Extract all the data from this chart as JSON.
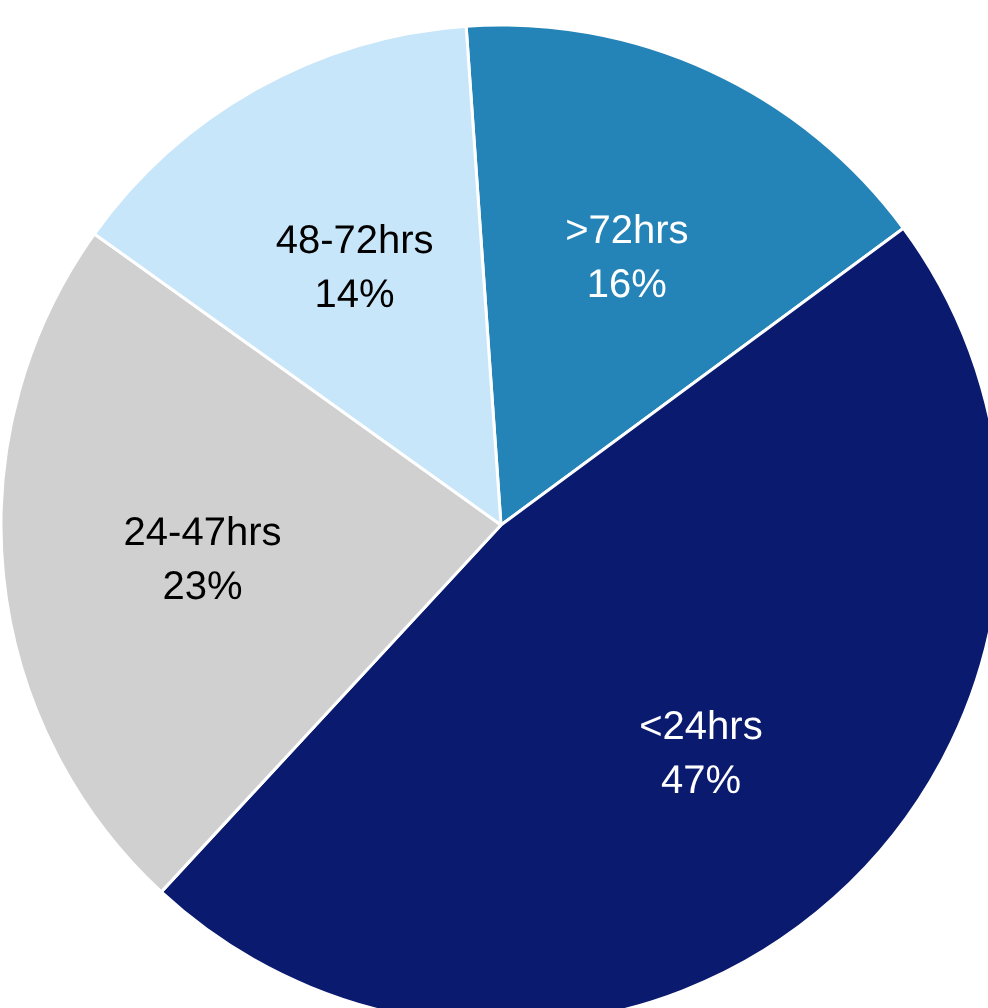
{
  "chart_data": {
    "type": "pie",
    "categories": [
      ">72hrs",
      "<24hrs",
      "24-47hrs",
      "48-72hrs"
    ],
    "values": [
      16,
      47,
      23,
      14
    ],
    "value_labels": [
      "16%",
      "47%",
      "23%",
      "14%"
    ],
    "colors": [
      "#2484b8",
      "#0a1a6e",
      "#d0d0d0",
      "#c8e6fa"
    ],
    "legend": false
  }
}
